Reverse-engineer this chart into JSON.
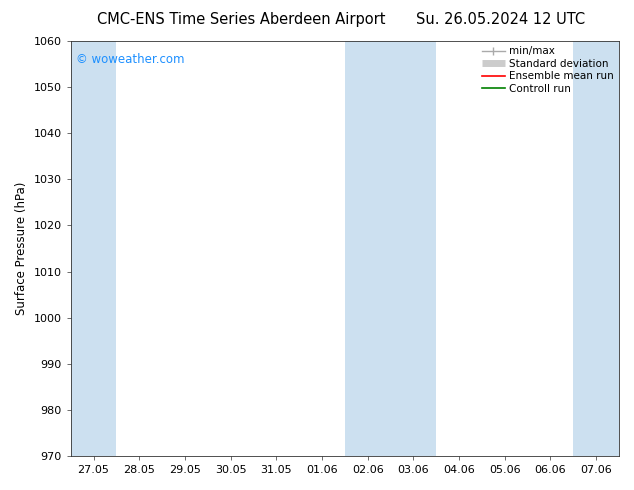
{
  "title_left": "CMC-ENS Time Series Aberdeen Airport",
  "title_right": "Su. 26.05.2024 12 UTC",
  "ylabel": "Surface Pressure (hPa)",
  "ylim": [
    970,
    1060
  ],
  "yticks": [
    970,
    980,
    990,
    1000,
    1010,
    1020,
    1030,
    1040,
    1050,
    1060
  ],
  "x_labels": [
    "27.05",
    "28.05",
    "29.05",
    "30.05",
    "31.05",
    "01.06",
    "02.06",
    "03.06",
    "04.06",
    "05.06",
    "06.06",
    "07.06"
  ],
  "x_positions": [
    0,
    1,
    2,
    3,
    4,
    5,
    6,
    7,
    8,
    9,
    10,
    11
  ],
  "xlim": [
    -0.5,
    11.5
  ],
  "shaded_bands": [
    {
      "x_start": -0.5,
      "x_end": 0.5
    },
    {
      "x_start": 5.5,
      "x_end": 7.5
    },
    {
      "x_start": 10.5,
      "x_end": 11.5
    }
  ],
  "band_color": "#cce0f0",
  "background_color": "#ffffff",
  "watermark_text": "© woweather.com",
  "watermark_color": "#1e90ff",
  "legend_items": [
    {
      "label": "min/max",
      "color": "#aaaaaa",
      "lw": 1.0
    },
    {
      "label": "Standard deviation",
      "color": "#cccccc",
      "lw": 5
    },
    {
      "label": "Ensemble mean run",
      "color": "#ff0000",
      "lw": 1.2
    },
    {
      "label": "Controll run",
      "color": "#008000",
      "lw": 1.2
    }
  ],
  "title_fontsize": 10.5,
  "ylabel_fontsize": 8.5,
  "tick_fontsize": 8,
  "watermark_fontsize": 8.5,
  "legend_fontsize": 7.5,
  "figsize": [
    6.34,
    4.9
  ],
  "dpi": 100
}
